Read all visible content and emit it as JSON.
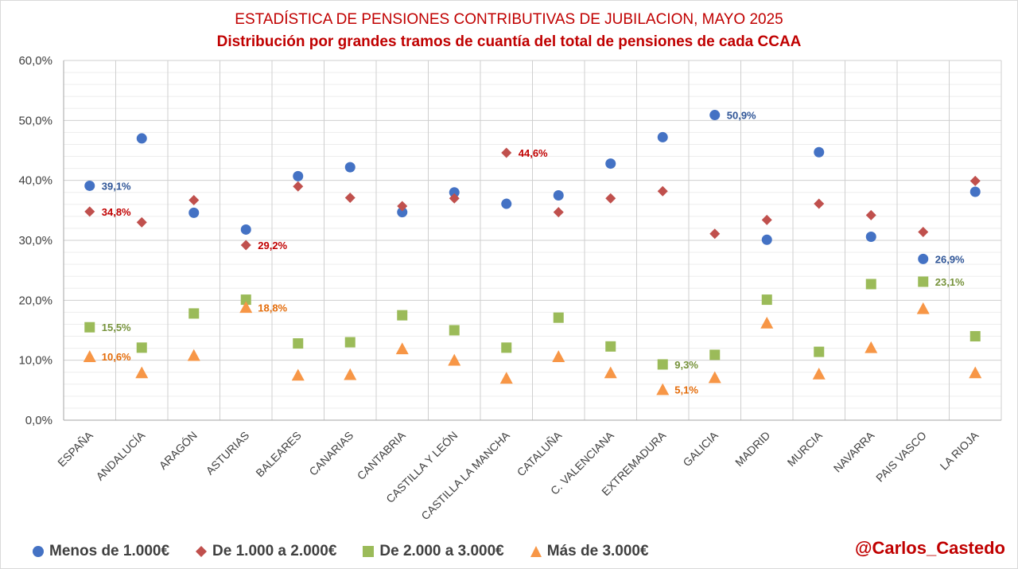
{
  "chart_data": {
    "type": "scatter",
    "title": "ESTADÍSTICA  DE PENSIONES CONTRIBUTIVAS DE JUBILACION, MAYO 2025",
    "subtitle": "Distribución por grandes tramos de cuantía  del total de pensiones de cada CCAA",
    "categories": [
      "ESPAÑA",
      "ANDALUCÍA",
      "ARAGÓN",
      "ASTURIAS",
      "BALEARES",
      "CANARIAS",
      "CANTABRIA",
      "CASTILLA Y LEÓN",
      "CASTILLA LA MANCHA",
      "CATALUÑA",
      "C. VALENCIANA",
      "EXTREMADURA",
      "GALICIA",
      "MADRID",
      "MURCIA",
      "NAVARRA",
      "PAIS VASCO",
      "LA RIOJA"
    ],
    "ylim": [
      0,
      60
    ],
    "yticks": [
      "0,0%",
      "10,0%",
      "20,0%",
      "30,0%",
      "40,0%",
      "50,0%",
      "60,0%"
    ],
    "grid": true,
    "legend_position": "bottom",
    "series": [
      {
        "name": "Menos de 1.000€",
        "color": "#4472c4",
        "marker": "circle",
        "values": [
          39.1,
          47.0,
          34.6,
          31.8,
          40.7,
          42.2,
          34.7,
          38.0,
          36.1,
          37.5,
          42.8,
          47.2,
          50.9,
          30.1,
          44.7,
          30.6,
          26.9,
          38.1
        ],
        "labels": [
          {
            "index": 0,
            "text": "39,1%"
          },
          {
            "index": 12,
            "text": "50,9%"
          },
          {
            "index": 16,
            "text": "26,9%"
          }
        ]
      },
      {
        "name": "De 1.000  a 2.000€",
        "color": "#c0504d",
        "marker": "diamond",
        "values": [
          34.8,
          33.0,
          36.7,
          29.2,
          39.0,
          37.1,
          35.7,
          37.0,
          44.6,
          34.7,
          37.0,
          38.2,
          31.1,
          33.4,
          36.1,
          34.2,
          31.4,
          39.9
        ],
        "labels": [
          {
            "index": 0,
            "text": "34,8%"
          },
          {
            "index": 3,
            "text": "29,2%"
          },
          {
            "index": 8,
            "text": "44,6%"
          }
        ]
      },
      {
        "name": "De 2.000  a 3.000€",
        "color": "#9bbb59",
        "marker": "square",
        "values": [
          15.5,
          12.1,
          17.8,
          20.1,
          12.8,
          13.0,
          17.5,
          15.0,
          12.1,
          17.1,
          12.3,
          9.3,
          10.9,
          20.1,
          11.4,
          22.7,
          23.1,
          14.0
        ],
        "labels": [
          {
            "index": 0,
            "text": "15,5%"
          },
          {
            "index": 11,
            "text": "9,3%"
          },
          {
            "index": 16,
            "text": "23,1%"
          }
        ]
      },
      {
        "name": "Más de 3.000€",
        "color": "#f79646",
        "marker": "triangle",
        "values": [
          10.6,
          7.9,
          10.8,
          18.8,
          7.5,
          7.6,
          11.9,
          10.0,
          7.0,
          10.6,
          7.9,
          5.1,
          7.1,
          16.2,
          7.7,
          12.1,
          18.6,
          7.9
        ],
        "labels": [
          {
            "index": 0,
            "text": "10,6%"
          },
          {
            "index": 3,
            "text": "18,8%"
          },
          {
            "index": 11,
            "text": "5,1%"
          }
        ]
      }
    ]
  },
  "credit": "@Carlos_Castedo"
}
